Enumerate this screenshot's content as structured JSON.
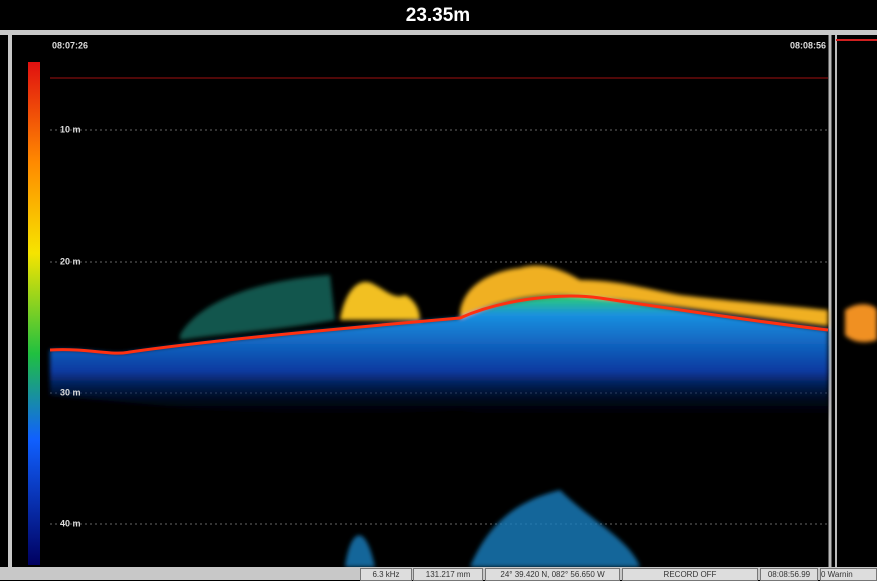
{
  "header": {
    "title": "23.35m"
  },
  "echogram": {
    "start_time": "08:07:26",
    "end_time": "08:08:56",
    "depth_labels": [
      "10 m",
      "20 m",
      "30 m",
      "40 m"
    ]
  },
  "status_bar": {
    "fields": [
      "6.3 kHz",
      "131.217 mm",
      "24° 39.420 N, 082° 56.650 W",
      "RECORD OFF",
      "08:08:56.99",
      "0 Warnin"
    ]
  }
}
